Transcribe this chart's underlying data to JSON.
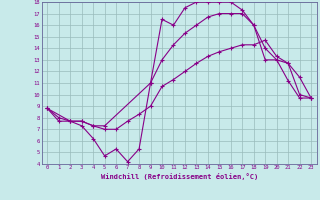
{
  "xlabel": "Windchill (Refroidissement éolien,°C)",
  "bg_color": "#c8eaea",
  "line_color": "#880088",
  "grid_color": "#99bbbb",
  "spine_color": "#666699",
  "xlim": [
    -0.5,
    23.5
  ],
  "ylim": [
    4,
    18
  ],
  "xticks": [
    0,
    1,
    2,
    3,
    4,
    5,
    6,
    7,
    8,
    9,
    10,
    11,
    12,
    13,
    14,
    15,
    16,
    17,
    18,
    19,
    20,
    21,
    22,
    23
  ],
  "yticks": [
    4,
    5,
    6,
    7,
    8,
    9,
    10,
    11,
    12,
    13,
    14,
    15,
    16,
    17,
    18
  ],
  "curve1_x": [
    0,
    1,
    2,
    3,
    4,
    5,
    6,
    7,
    8,
    9,
    10,
    11,
    12,
    13,
    14,
    15,
    16,
    17,
    18,
    19,
    20,
    21,
    22,
    23
  ],
  "curve1_y": [
    8.8,
    8.0,
    7.7,
    7.3,
    6.2,
    4.7,
    5.3,
    4.2,
    5.3,
    11.0,
    16.5,
    16.0,
    17.5,
    18.0,
    18.0,
    18.0,
    18.0,
    17.3,
    16.0,
    13.0,
    13.0,
    11.2,
    9.7,
    9.7
  ],
  "curve2_x": [
    0,
    1,
    2,
    3,
    4,
    5,
    6,
    7,
    8,
    9,
    10,
    11,
    12,
    13,
    14,
    15,
    16,
    17,
    18,
    19,
    20,
    21,
    22,
    23
  ],
  "curve2_y": [
    8.8,
    7.7,
    7.7,
    7.7,
    7.3,
    7.0,
    7.0,
    7.7,
    8.3,
    9.0,
    10.7,
    11.3,
    12.0,
    12.7,
    13.3,
    13.7,
    14.0,
    14.3,
    14.3,
    14.7,
    13.3,
    12.7,
    10.0,
    9.7
  ],
  "curve3_x": [
    0,
    2,
    3,
    4,
    5,
    9,
    10,
    11,
    12,
    13,
    14,
    15,
    16,
    17,
    18,
    19,
    20,
    21,
    22,
    23
  ],
  "curve3_y": [
    8.8,
    7.7,
    7.7,
    7.3,
    7.3,
    11.0,
    13.0,
    14.3,
    15.3,
    16.0,
    16.7,
    17.0,
    17.0,
    17.0,
    16.0,
    14.0,
    13.0,
    12.7,
    11.5,
    9.7
  ]
}
